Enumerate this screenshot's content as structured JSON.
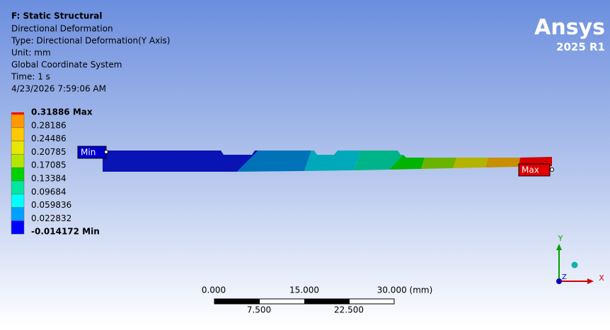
{
  "header": {
    "title": "F: Static Structural",
    "lines": [
      "Directional Deformation",
      "Type: Directional Deformation(Y Axis)",
      "Unit: mm",
      "Global Coordinate System",
      "Time: 1 s",
      "4/23/2026 7:59:06 AM"
    ]
  },
  "legend": {
    "labels": [
      "0.31886 Max",
      "0.28186",
      "0.24486",
      "0.20785",
      "0.17085",
      "0.13384",
      "0.09684",
      "0.059836",
      "0.022832",
      "-0.014172 Min"
    ]
  },
  "probes": {
    "min": "Min",
    "max": "Max"
  },
  "logo": {
    "brand": "Ansys",
    "version": "2025 R1"
  },
  "scale_bar": {
    "top_labels": [
      "0.000",
      "15.000",
      "30.000 (mm)"
    ],
    "bottom_labels": [
      "7.500",
      "22.500"
    ]
  },
  "triad": {
    "y": "Y",
    "x": "X",
    "z": "Z"
  }
}
